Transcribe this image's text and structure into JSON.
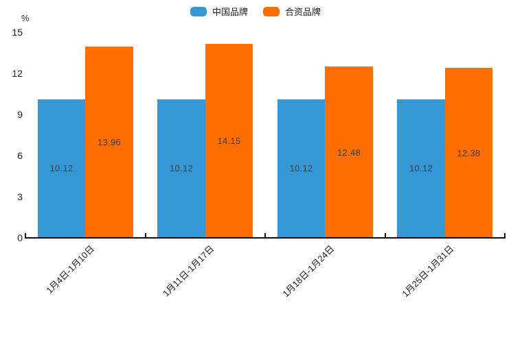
{
  "chart_data": {
    "type": "bar",
    "title": "",
    "y_axis_unit_label": "%",
    "categories": [
      "1月4日-1月10日",
      "1月11日-1月17日",
      "1月18日-1月24日",
      "1月25日-1月31日"
    ],
    "series": [
      {
        "name": "中国品牌",
        "color": "#3498d6",
        "values": [
          10.12,
          10.12,
          10.12,
          10.12
        ]
      },
      {
        "name": "合资品牌",
        "color": "#ff6e00",
        "values": [
          13.96,
          14.15,
          12.48,
          12.38
        ]
      }
    ],
    "ylim": [
      0,
      15
    ],
    "yticks": [
      0,
      3,
      6,
      9,
      12,
      15
    ],
    "legend_position": "top",
    "grid": false,
    "value_labels_inside_bars": true,
    "x_label_rotation_deg": 45,
    "axis_color": "#111111"
  }
}
